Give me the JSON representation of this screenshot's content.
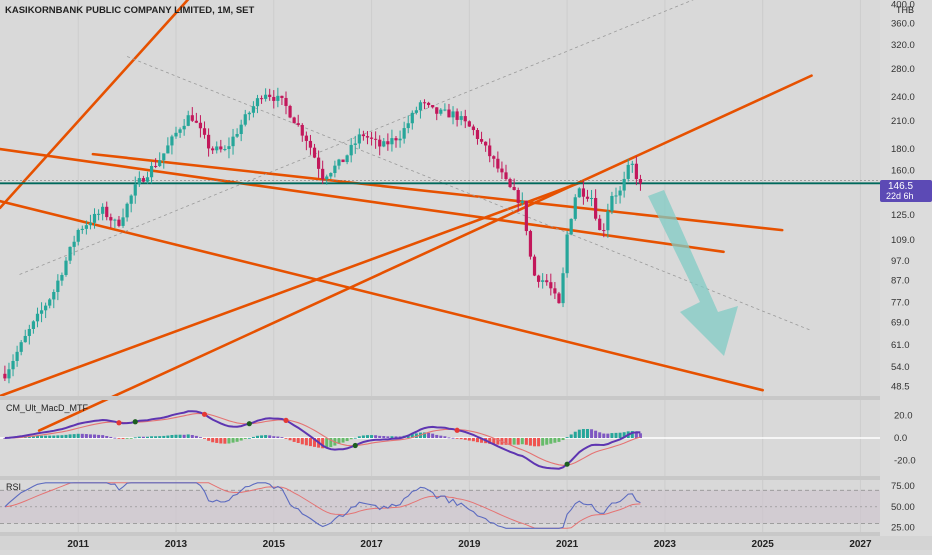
{
  "header": {
    "symbol_title": "KASIKORNBANK PUBLIC COMPANY LIMITED, 1M, SET",
    "currency": "THB"
  },
  "price_badge": {
    "value": "146.5",
    "countdown": "22d 6h"
  },
  "panels": {
    "macd_label": "CM_Ult_MacD_MTF",
    "rsi_label": "RSI"
  },
  "colors": {
    "background": "#d9d9d9",
    "candle_up": "#26a69a",
    "candle_down": "#c2185b",
    "trendline": "#e65100",
    "support_line": "#00695c",
    "forecast_arrow": "#80cbc4",
    "badge": "#5c4ab5",
    "macd_line": "#26a69a",
    "macd_line_down": "#5e35b1",
    "signal_line": "#e57373",
    "rsi_line": "#5c6bc0",
    "rsi_ma": "#e57373"
  },
  "chart_data": {
    "type": "candlestick",
    "title": "KASIKORNBANK PUBLIC COMPANY LIMITED, 1M, SET",
    "x_ticks": [
      "2011",
      "2013",
      "2015",
      "2017",
      "2019",
      "2021",
      "2023",
      "2025",
      "2027"
    ],
    "y_ticks": [
      "400.0",
      "360.0",
      "320.0",
      "280.0",
      "240.0",
      "210.0",
      "180.0",
      "160.0",
      "146.5",
      "125.0",
      "109.0",
      "97.0",
      "87.0",
      "77.0",
      "69.0",
      "61.0",
      "54.0",
      "48.5"
    ],
    "y_scale": "log",
    "ylim": [
      46,
      410
    ],
    "xlim": [
      2009.4,
      2027.4
    ],
    "current_price": 146.5,
    "support_level": 146.5,
    "close_series": [
      {
        "t": 2009.5,
        "v": 52
      },
      {
        "t": 2010.0,
        "v": 66
      },
      {
        "t": 2010.5,
        "v": 82
      },
      {
        "t": 2011.0,
        "v": 115
      },
      {
        "t": 2011.5,
        "v": 128
      },
      {
        "t": 2011.8,
        "v": 118
      },
      {
        "t": 2012.2,
        "v": 148
      },
      {
        "t": 2012.7,
        "v": 172
      },
      {
        "t": 2013.1,
        "v": 205
      },
      {
        "t": 2013.3,
        "v": 218
      },
      {
        "t": 2013.7,
        "v": 180
      },
      {
        "t": 2014.0,
        "v": 178
      },
      {
        "t": 2014.4,
        "v": 212
      },
      {
        "t": 2014.8,
        "v": 248
      },
      {
        "t": 2015.2,
        "v": 232
      },
      {
        "t": 2015.7,
        "v": 188
      },
      {
        "t": 2016.0,
        "v": 155
      },
      {
        "t": 2016.4,
        "v": 168
      },
      {
        "t": 2016.8,
        "v": 196
      },
      {
        "t": 2017.2,
        "v": 182
      },
      {
        "t": 2017.6,
        "v": 195
      },
      {
        "t": 2018.0,
        "v": 232
      },
      {
        "t": 2018.3,
        "v": 220
      },
      {
        "t": 2018.7,
        "v": 218
      },
      {
        "t": 2019.1,
        "v": 198
      },
      {
        "t": 2019.5,
        "v": 168
      },
      {
        "t": 2019.8,
        "v": 146
      },
      {
        "t": 2020.1,
        "v": 132
      },
      {
        "t": 2020.3,
        "v": 90
      },
      {
        "t": 2020.6,
        "v": 86
      },
      {
        "t": 2020.85,
        "v": 75
      },
      {
        "t": 2021.0,
        "v": 112
      },
      {
        "t": 2021.2,
        "v": 145
      },
      {
        "t": 2021.5,
        "v": 138
      },
      {
        "t": 2021.7,
        "v": 110
      },
      {
        "t": 2021.9,
        "v": 140
      },
      {
        "t": 2022.1,
        "v": 142
      },
      {
        "t": 2022.3,
        "v": 168
      },
      {
        "t": 2022.5,
        "v": 146.5
      }
    ],
    "trendlines": [
      {
        "name": "channel-upper-a",
        "from": [
          2009.4,
          130
        ],
        "to": [
          2013.9,
          500
        ]
      },
      {
        "name": "channel-upper-b",
        "from": [
          2011.3,
          175
        ],
        "to": [
          2025.4,
          115
        ]
      },
      {
        "name": "channel-lower-a",
        "from": [
          2009.4,
          135
        ],
        "to": [
          2025.0,
          47.5
        ]
      },
      {
        "name": "channel-lower-b",
        "from": [
          2009.4,
          180
        ],
        "to": [
          2024.2,
          102
        ]
      },
      {
        "name": "rising-b",
        "from": [
          2010.2,
          38
        ],
        "to": [
          2026.0,
          270
        ]
      },
      {
        "name": "rising-c",
        "from": [
          2009.4,
          46
        ],
        "to": [
          2021.3,
          150
        ]
      }
    ],
    "macd": {
      "ylim": [
        -32,
        32
      ],
      "y_ticks": [
        "20.0",
        "0.0",
        "-20.0"
      ]
    },
    "rsi": {
      "ylim": [
        22,
        80
      ],
      "y_ticks": [
        "75.00",
        "50.00",
        "25.00"
      ]
    }
  }
}
